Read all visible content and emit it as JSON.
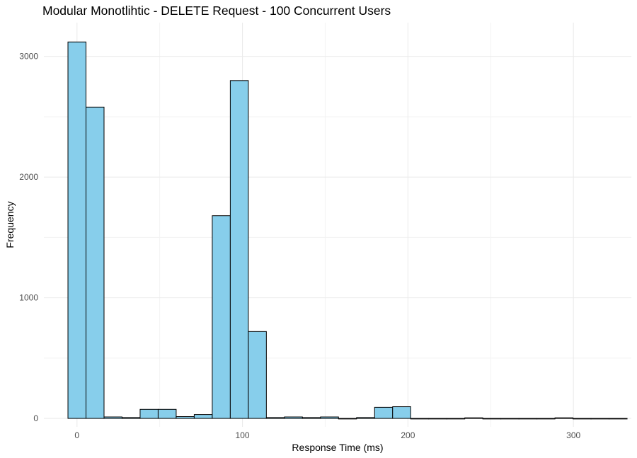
{
  "chart_data": {
    "type": "bar",
    "title": "Modular Monotlihtic - DELETE Request - 100 Concurrent Users",
    "xlabel": "Response Time (ms)",
    "ylabel": "Frequency",
    "xlim": [
      -20,
      335
    ],
    "ylim": [
      -70,
      3280
    ],
    "x_ticks": [
      0,
      100,
      200,
      300
    ],
    "y_ticks": [
      0,
      1000,
      2000,
      3000
    ],
    "bin_width": 10.9,
    "bins": [
      {
        "start": -5.45,
        "end": 5.45,
        "count": 3120
      },
      {
        "start": 5.45,
        "end": 16.35,
        "count": 2580
      },
      {
        "start": 16.35,
        "end": 27.25,
        "count": 12
      },
      {
        "start": 27.25,
        "end": 38.15,
        "count": 7
      },
      {
        "start": 38.15,
        "end": 49.05,
        "count": 75
      },
      {
        "start": 49.05,
        "end": 59.95,
        "count": 75
      },
      {
        "start": 59.95,
        "end": 70.85,
        "count": 15
      },
      {
        "start": 70.85,
        "end": 81.75,
        "count": 32
      },
      {
        "start": 81.75,
        "end": 92.65,
        "count": 1680
      },
      {
        "start": 92.65,
        "end": 103.55,
        "count": 2800
      },
      {
        "start": 103.55,
        "end": 114.45,
        "count": 720
      },
      {
        "start": 114.45,
        "end": 125.35,
        "count": 7
      },
      {
        "start": 125.35,
        "end": 136.25,
        "count": 12
      },
      {
        "start": 136.25,
        "end": 147.15,
        "count": 7
      },
      {
        "start": 147.15,
        "end": 158.05,
        "count": 12
      },
      {
        "start": 158.05,
        "end": 168.95,
        "count": 0
      },
      {
        "start": 168.95,
        "end": 179.85,
        "count": 7
      },
      {
        "start": 179.85,
        "end": 190.75,
        "count": 92
      },
      {
        "start": 190.75,
        "end": 201.65,
        "count": 97
      },
      {
        "start": 201.65,
        "end": 212.55,
        "count": 0
      },
      {
        "start": 212.55,
        "end": 223.45,
        "count": 0
      },
      {
        "start": 223.45,
        "end": 234.35,
        "count": 0
      },
      {
        "start": 234.35,
        "end": 245.25,
        "count": 5
      },
      {
        "start": 245.25,
        "end": 256.15,
        "count": 0
      },
      {
        "start": 256.15,
        "end": 267.05,
        "count": 0
      },
      {
        "start": 267.05,
        "end": 277.95,
        "count": 0
      },
      {
        "start": 277.95,
        "end": 288.85,
        "count": 0
      },
      {
        "start": 288.85,
        "end": 299.75,
        "count": 5
      },
      {
        "start": 299.75,
        "end": 310.65,
        "count": 0
      },
      {
        "start": 310.65,
        "end": 321.55,
        "count": 0
      },
      {
        "start": 321.55,
        "end": 332.45,
        "count": 0
      }
    ],
    "grid": true,
    "colors": {
      "fill": "#87ceeb",
      "stroke": "#000000",
      "grid_major": "#ebebeb",
      "grid_minor": "#f3f3f3"
    }
  }
}
